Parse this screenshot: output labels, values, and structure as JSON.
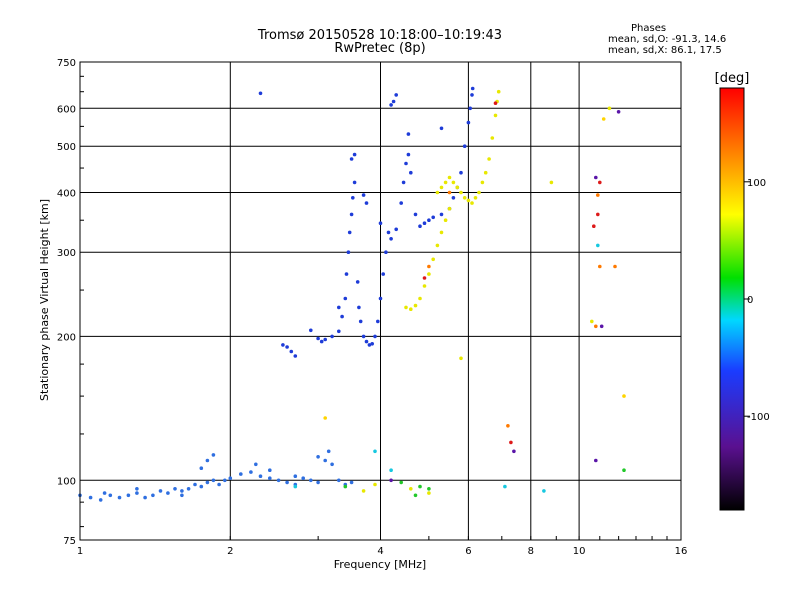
{
  "header": {
    "title_line1": "Tromsø 20150528 10:18:00–10:19:43",
    "title_line2": "RwPretec (8p)",
    "info_title": "Phases",
    "info_o": "mean, sd,O: -91.3, 14.6",
    "info_x": "mean, sd,X:  86.1, 17.5"
  },
  "colorbar": {
    "title": "[deg]",
    "ticks": [
      "100",
      "0",
      "-100"
    ],
    "tick_values": [
      100,
      0,
      -100
    ],
    "range": [
      -180,
      180
    ]
  },
  "chart_data": {
    "type": "scatter",
    "title": "Tromsø 20150528 10:18:00–10:19:43",
    "subtitle": "RwPretec (8p)",
    "xlabel": "Frequency [MHz]",
    "ylabel": "Stationary phase Virtual Height [km]",
    "x_scale": "log",
    "y_scale": "log",
    "xlim": [
      1,
      16
    ],
    "ylim": [
      75,
      750
    ],
    "x_ticks": [
      1,
      2,
      4,
      6,
      8,
      10,
      16
    ],
    "x_tick_labels": [
      "1",
      "2",
      "4",
      "6",
      "8",
      "10",
      "16"
    ],
    "y_ticks": [
      75,
      100,
      200,
      300,
      400,
      500,
      600,
      750
    ],
    "y_tick_labels": [
      "75",
      "100",
      "200",
      "300",
      "400",
      "500",
      "600",
      "750"
    ],
    "color_variable": "phase [deg]",
    "grid": true,
    "series": [
      {
        "color": "#2f6fe0",
        "points": [
          [
            1.0,
            93
          ],
          [
            1.05,
            92
          ],
          [
            1.1,
            91
          ],
          [
            1.12,
            94
          ],
          [
            1.15,
            93
          ],
          [
            1.2,
            92
          ],
          [
            1.25,
            93
          ],
          [
            1.3,
            94
          ],
          [
            1.35,
            92
          ],
          [
            1.4,
            93
          ],
          [
            1.45,
            95
          ],
          [
            1.5,
            94
          ],
          [
            1.55,
            96
          ],
          [
            1.6,
            95
          ],
          [
            1.65,
            96
          ],
          [
            1.7,
            98
          ],
          [
            1.75,
            97
          ],
          [
            1.8,
            99
          ],
          [
            1.85,
            100
          ],
          [
            1.9,
            98
          ],
          [
            1.95,
            100
          ],
          [
            2.0,
            101
          ],
          [
            2.1,
            103
          ],
          [
            2.2,
            104
          ],
          [
            2.3,
            102
          ],
          [
            2.4,
            101
          ],
          [
            2.5,
            100
          ],
          [
            2.6,
            99
          ],
          [
            2.7,
            98
          ],
          [
            2.8,
            101
          ],
          [
            2.9,
            100
          ],
          [
            3.0,
            99
          ],
          [
            3.1,
            110
          ],
          [
            3.15,
            115
          ],
          [
            3.2,
            108
          ],
          [
            3.3,
            100
          ],
          [
            3.4,
            98
          ],
          [
            3.5,
            99
          ],
          [
            1.8,
            110
          ],
          [
            1.85,
            113
          ],
          [
            1.75,
            106
          ],
          [
            2.25,
            108
          ],
          [
            2.4,
            105
          ],
          [
            3.0,
            112
          ],
          [
            2.7,
            102
          ],
          [
            1.3,
            96
          ],
          [
            1.6,
            93
          ]
        ]
      },
      {
        "color": "#1e3cd8",
        "points": [
          [
            2.6,
            190
          ],
          [
            2.65,
            186
          ],
          [
            2.7,
            182
          ],
          [
            2.55,
            192
          ],
          [
            2.9,
            206
          ],
          [
            3.0,
            198
          ],
          [
            3.05,
            195
          ],
          [
            3.1,
            197
          ],
          [
            3.2,
            200
          ],
          [
            3.3,
            205
          ],
          [
            3.35,
            220
          ],
          [
            3.4,
            240
          ],
          [
            3.42,
            270
          ],
          [
            3.45,
            300
          ],
          [
            3.47,
            330
          ],
          [
            3.5,
            360
          ],
          [
            3.52,
            390
          ],
          [
            3.55,
            420
          ],
          [
            3.6,
            260
          ],
          [
            3.62,
            230
          ],
          [
            3.65,
            215
          ],
          [
            3.7,
            200
          ],
          [
            3.75,
            195
          ],
          [
            3.8,
            192
          ],
          [
            3.85,
            193
          ],
          [
            3.9,
            200
          ],
          [
            3.95,
            215
          ],
          [
            4.0,
            240
          ],
          [
            4.05,
            270
          ],
          [
            4.1,
            300
          ],
          [
            4.15,
            330
          ],
          [
            4.0,
            345
          ],
          [
            4.2,
            320
          ],
          [
            4.3,
            335
          ],
          [
            4.4,
            380
          ],
          [
            4.45,
            420
          ],
          [
            4.5,
            460
          ],
          [
            4.55,
            480
          ],
          [
            4.6,
            440
          ],
          [
            4.7,
            360
          ],
          [
            4.8,
            340
          ],
          [
            4.9,
            345
          ],
          [
            5.0,
            350
          ],
          [
            5.1,
            355
          ],
          [
            5.3,
            360
          ],
          [
            5.5,
            370
          ],
          [
            5.6,
            390
          ],
          [
            5.7,
            410
          ],
          [
            5.8,
            440
          ],
          [
            5.9,
            500
          ],
          [
            6.0,
            560
          ],
          [
            6.05,
            600
          ],
          [
            6.1,
            640
          ],
          [
            6.12,
            660
          ],
          [
            4.25,
            620
          ],
          [
            4.3,
            640
          ],
          [
            4.2,
            610
          ],
          [
            3.55,
            480
          ],
          [
            3.7,
            395
          ],
          [
            3.75,
            380
          ],
          [
            3.5,
            470
          ],
          [
            2.3,
            645
          ],
          [
            4.55,
            530
          ],
          [
            5.3,
            545
          ],
          [
            3.3,
            230
          ]
        ]
      },
      {
        "color": "#e8e800",
        "points": [
          [
            4.5,
            230
          ],
          [
            4.6,
            228
          ],
          [
            4.7,
            232
          ],
          [
            4.8,
            240
          ],
          [
            4.9,
            255
          ],
          [
            5.0,
            270
          ],
          [
            5.1,
            290
          ],
          [
            5.2,
            310
          ],
          [
            5.3,
            330
          ],
          [
            5.4,
            350
          ],
          [
            5.5,
            370
          ],
          [
            5.2,
            400
          ],
          [
            5.3,
            410
          ],
          [
            5.4,
            420
          ],
          [
            5.5,
            430
          ],
          [
            5.6,
            420
          ],
          [
            5.7,
            410
          ],
          [
            5.8,
            400
          ],
          [
            5.9,
            390
          ],
          [
            6.0,
            385
          ],
          [
            6.1,
            380
          ],
          [
            6.2,
            390
          ],
          [
            6.3,
            400
          ],
          [
            6.4,
            420
          ],
          [
            6.5,
            440
          ],
          [
            6.6,
            470
          ],
          [
            6.7,
            520
          ],
          [
            6.8,
            580
          ],
          [
            6.85,
            620
          ],
          [
            6.9,
            650
          ],
          [
            5.8,
            180
          ],
          [
            8.8,
            420
          ],
          [
            11.5,
            600
          ],
          [
            10.6,
            215
          ],
          [
            3.7,
            95
          ],
          [
            3.9,
            98
          ],
          [
            4.6,
            96
          ],
          [
            5.0,
            94
          ]
        ]
      },
      {
        "color": "#ff7a00",
        "points": [
          [
            5.0,
            280
          ],
          [
            5.5,
            400
          ],
          [
            10.9,
            395
          ],
          [
            11.8,
            280
          ],
          [
            7.2,
            130
          ],
          [
            11.0,
            280
          ],
          [
            10.8,
            210
          ]
        ]
      },
      {
        "color": "#dd1a1a",
        "points": [
          [
            4.9,
            265
          ],
          [
            10.9,
            360
          ],
          [
            11.0,
            420
          ],
          [
            7.3,
            120
          ],
          [
            6.8,
            615
          ],
          [
            10.7,
            340
          ]
        ]
      },
      {
        "color": "#ffd400",
        "points": [
          [
            11.2,
            570
          ],
          [
            12.3,
            150
          ],
          [
            3.1,
            135
          ]
        ]
      },
      {
        "color": "#17c8e0",
        "points": [
          [
            3.9,
            115
          ],
          [
            10.9,
            310
          ],
          [
            8.5,
            95
          ],
          [
            2.7,
            97
          ],
          [
            4.2,
            105
          ],
          [
            7.1,
            97
          ]
        ]
      },
      {
        "color": "#22c82a",
        "points": [
          [
            4.4,
            99
          ],
          [
            4.8,
            97
          ],
          [
            5.0,
            96
          ],
          [
            12.3,
            105
          ],
          [
            4.7,
            93
          ],
          [
            3.4,
            97
          ]
        ]
      },
      {
        "color": "#5a15a8",
        "points": [
          [
            10.8,
            430
          ],
          [
            10.8,
            110
          ],
          [
            11.1,
            210
          ],
          [
            12.0,
            590
          ],
          [
            7.4,
            115
          ],
          [
            4.2,
            100
          ]
        ]
      }
    ]
  }
}
